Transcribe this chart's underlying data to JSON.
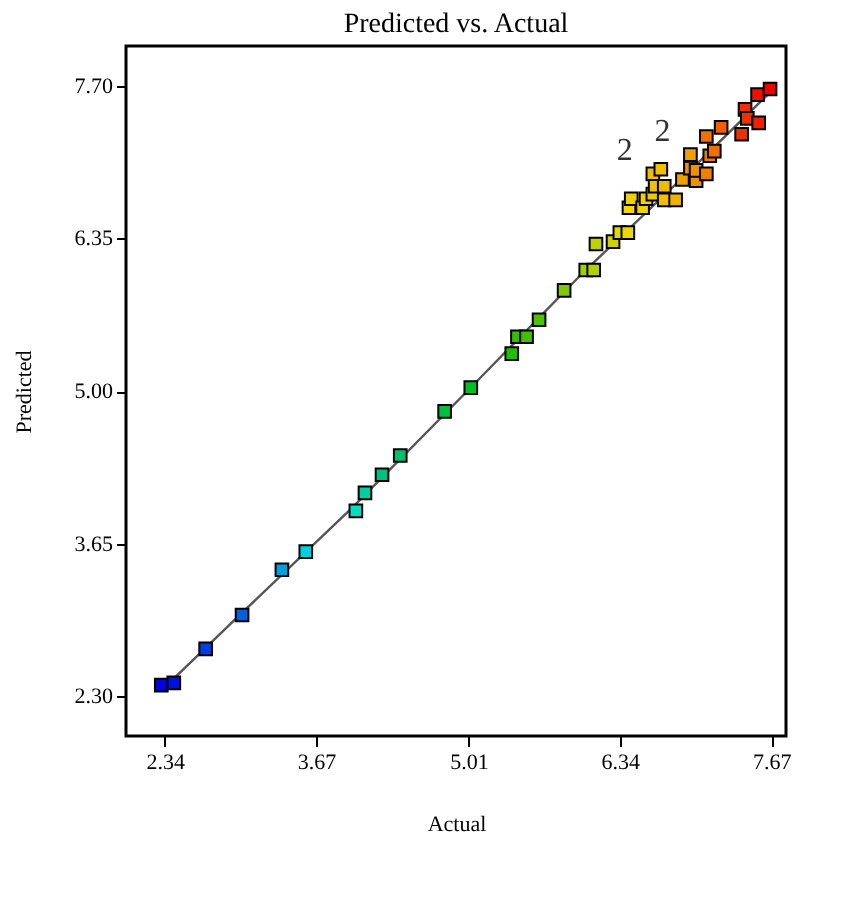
{
  "chart_data": {
    "type": "scatter",
    "title": "Predicted vs. Actual",
    "xlabel": "Actual",
    "ylabel": "Predicted",
    "marker": "square",
    "grid": false,
    "xlim": [
      2.0,
      7.8
    ],
    "ylim": [
      1.95,
      8.05
    ],
    "xticks": [
      2.34,
      3.67,
      5.01,
      6.34,
      7.67
    ],
    "yticks": [
      {
        "value": 2.3,
        "label": "2.30"
      },
      3.65,
      {
        "value": 5.0,
        "label": "5.00"
      },
      6.35,
      {
        "value": 7.7,
        "label": "7.70"
      }
    ],
    "series": [
      {
        "x": [
          2.31,
          2.42,
          2.7,
          3.02,
          3.37,
          3.58,
          4.02,
          4.1,
          4.25,
          4.41,
          4.8,
          5.03,
          5.39,
          5.44,
          5.52,
          5.63,
          5.85,
          6.04,
          6.11,
          6.13,
          6.28,
          6.34,
          6.41,
          6.42,
          6.44,
          6.54,
          6.57,
          6.63,
          6.63,
          6.7,
          6.65,
          6.73,
          6.73,
          6.83,
          6.89,
          6.96,
          6.96,
          7.01,
          7.01,
          7.1,
          7.13,
          7.17,
          7.1,
          7.23,
          7.41,
          7.44,
          7.46,
          7.56,
          7.55,
          7.66
        ],
        "values": [
          2.4,
          2.42,
          2.72,
          3.02,
          3.42,
          3.58,
          3.94,
          4.1,
          4.26,
          4.43,
          4.82,
          5.03,
          5.33,
          5.48,
          5.48,
          5.63,
          5.89,
          6.07,
          6.07,
          6.3,
          6.32,
          6.4,
          6.4,
          6.62,
          6.7,
          6.62,
          6.7,
          6.74,
          6.92,
          6.96,
          6.81,
          6.81,
          6.69,
          6.69,
          6.87,
          7.09,
          6.97,
          6.86,
          6.95,
          6.92,
          7.08,
          7.12,
          7.25,
          7.33,
          7.27,
          7.49,
          7.41,
          7.37,
          7.62,
          7.67
        ],
        "colors": [
          "#0000e0",
          "#0010e0",
          "#0040e0",
          "#0060e0",
          "#00a0e0",
          "#00d0e0",
          "#00e0c0",
          "#00d0a0",
          "#00c080",
          "#00c070",
          "#00c040",
          "#00c020",
          "#20c000",
          "#30c000",
          "#40c000",
          "#50c000",
          "#80c800",
          "#a0d000",
          "#b0d000",
          "#c0d000",
          "#d0d000",
          "#e0d800",
          "#e8d800",
          "#f0d800",
          "#f0d000",
          "#f0d000",
          "#f0d000",
          "#f0c800",
          "#f0c000",
          "#f0c000",
          "#f0c000",
          "#f0b800",
          "#f0c000",
          "#f0b000",
          "#f0a000",
          "#f0a000",
          "#f09000",
          "#f09000",
          "#f09000",
          "#f08000",
          "#f07800",
          "#f07000",
          "#f07000",
          "#f06000",
          "#f03000",
          "#f03000",
          "#f03000",
          "#f02000",
          "#f01000",
          "#f00000"
        ]
      },
      {
        "type": "line",
        "marker": "none",
        "color": "#555555",
        "x": [
          2.34,
          3.0,
          4.0,
          5.0,
          6.0,
          7.0,
          7.67
        ],
        "values": [
          2.38,
          3.02,
          3.98,
          5.0,
          6.03,
          6.99,
          7.65
        ]
      }
    ],
    "annotations": [
      {
        "text": "2",
        "x": 6.63,
        "y": 6.92
      },
      {
        "text": "2",
        "x": 6.96,
        "y": 7.09
      }
    ]
  }
}
